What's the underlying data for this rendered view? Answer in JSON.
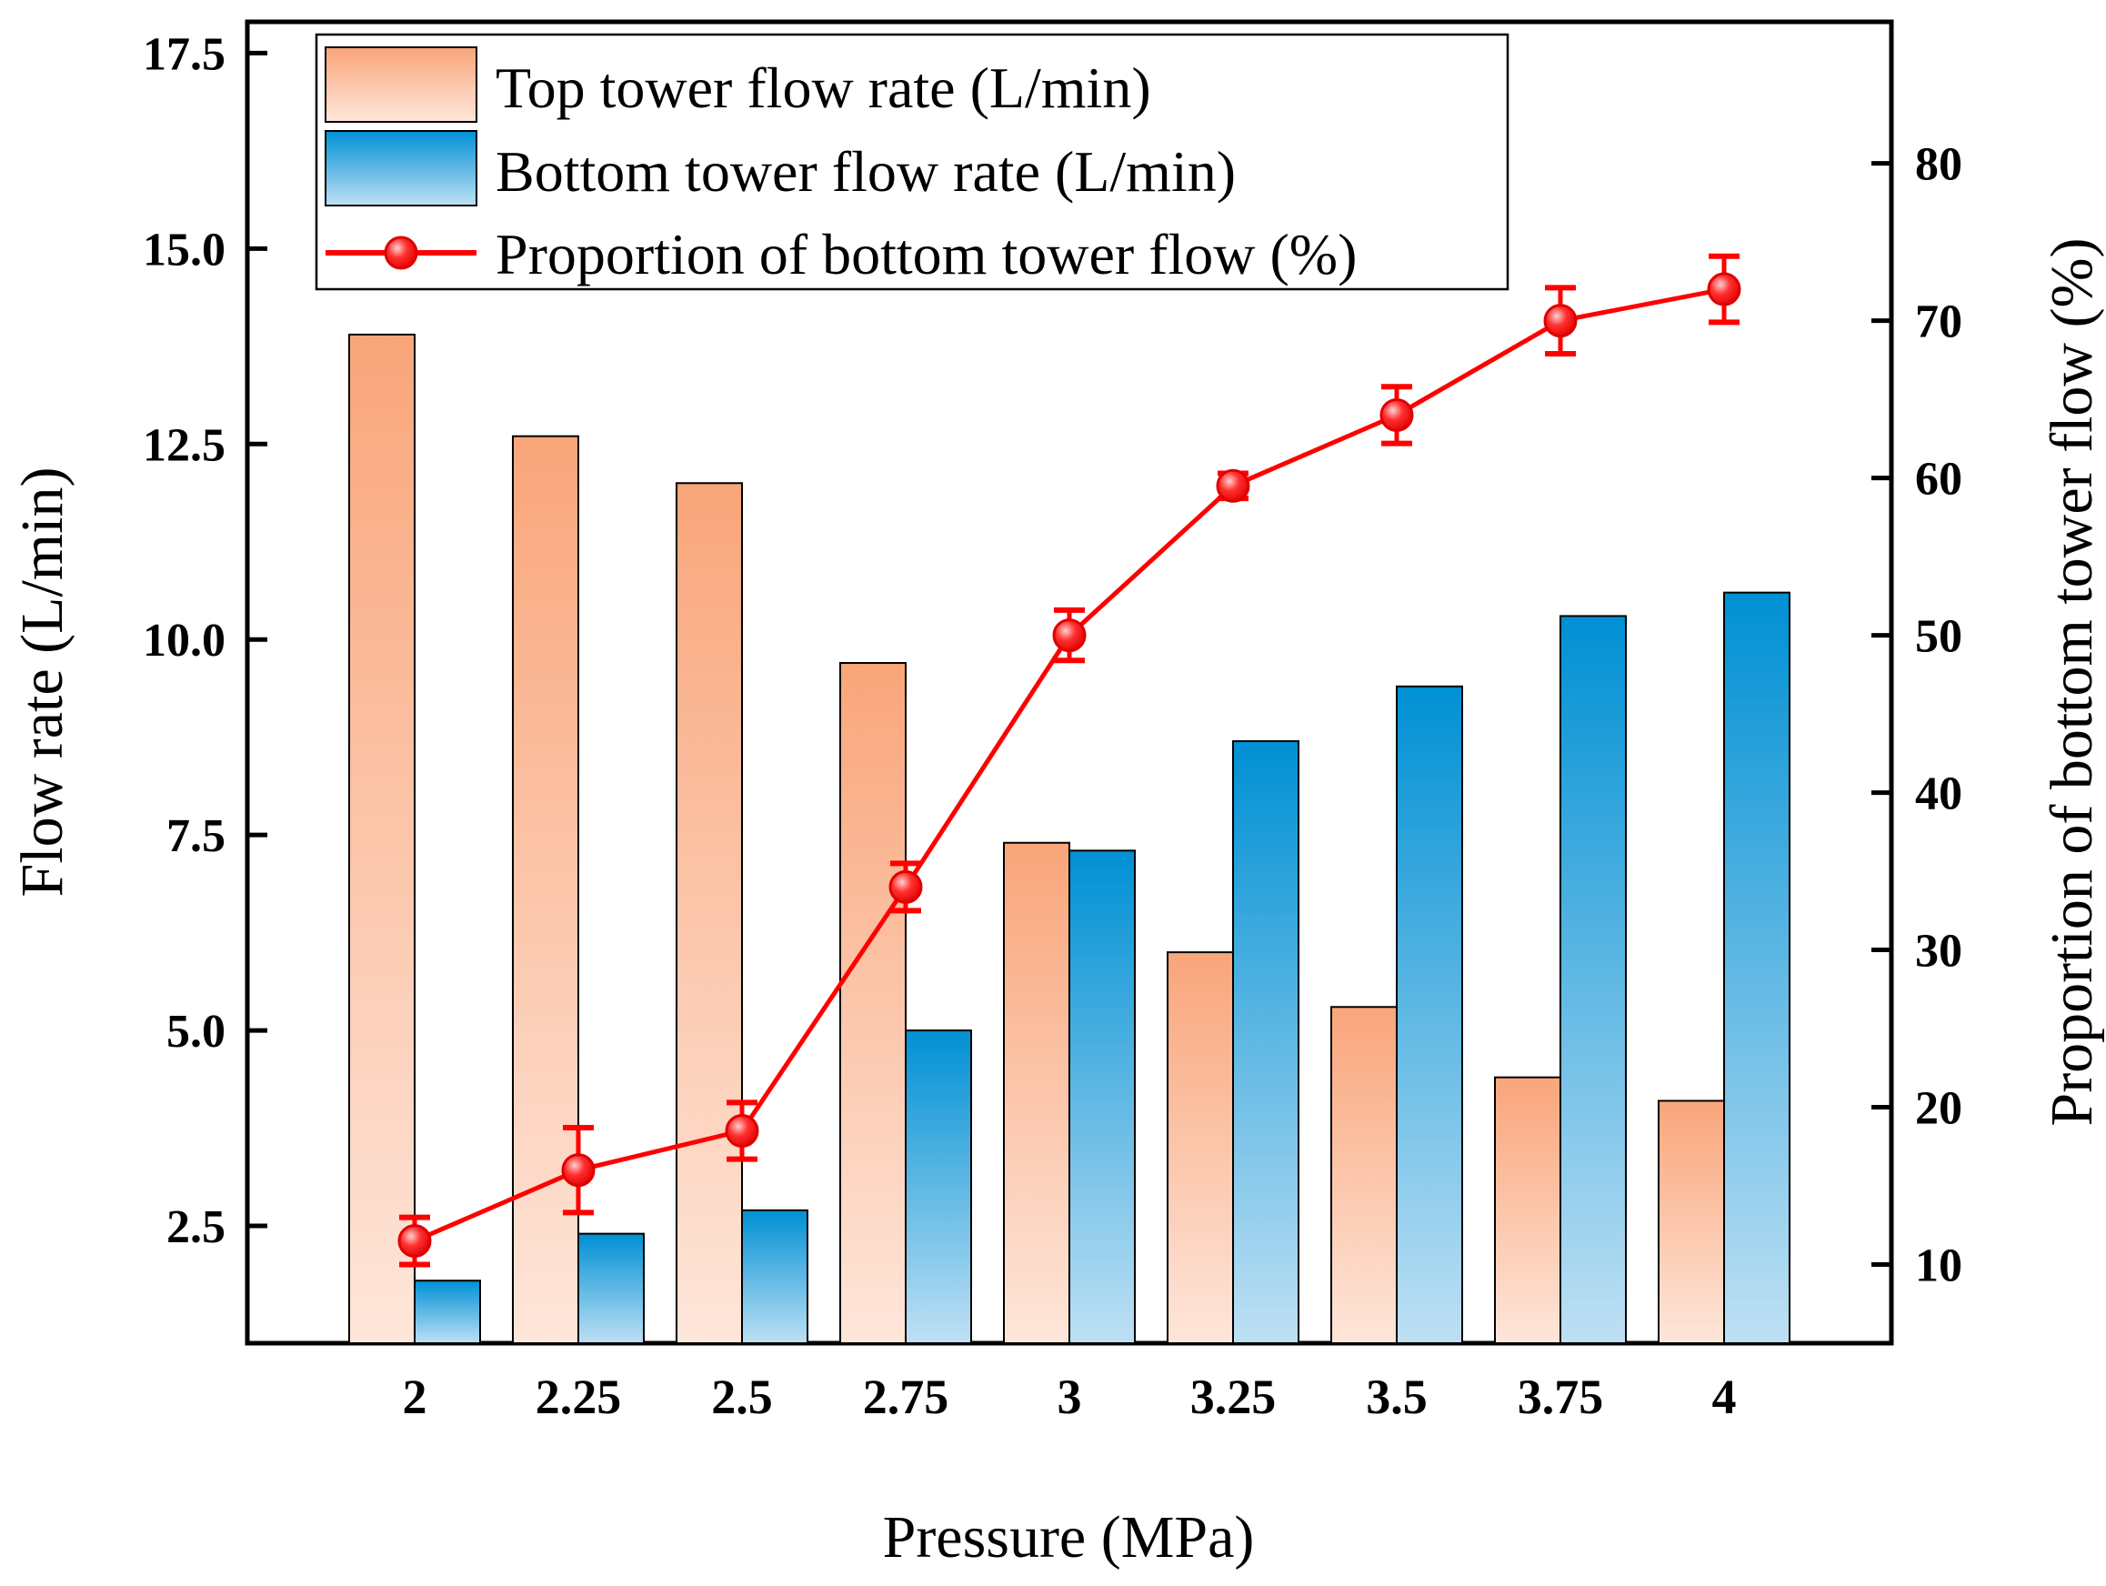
{
  "chart_data": {
    "type": "bar",
    "title": "",
    "categories": [
      "2",
      "2.25",
      "2.5",
      "2.75",
      "3",
      "3.25",
      "3.5",
      "3.75",
      "4"
    ],
    "xlabel": "Pressure (MPa)",
    "ylabel": "Flow rate (L/min)",
    "y2label": "Proportion of bottom tower flow (%)",
    "ylim": [
      1.0,
      17.9
    ],
    "y2lim": [
      5.0,
      89.0
    ],
    "y_ticks": [
      "2.5",
      "5.0",
      "7.5",
      "10.0",
      "12.5",
      "15.0",
      "17.5"
    ],
    "y2_ticks": [
      "10",
      "20",
      "30",
      "40",
      "50",
      "60",
      "70",
      "80"
    ],
    "legend_position": "top-left",
    "series": [
      {
        "name": "Top tower flow rate (L/min)",
        "kind": "bar",
        "axis": "left",
        "color_top": "#F9A57A",
        "color_bottom": "#FEE6DA",
        "values": [
          13.9,
          12.6,
          12.0,
          9.7,
          7.4,
          6.0,
          5.3,
          4.4,
          4.1
        ]
      },
      {
        "name": "Bottom tower flow rate (L/min)",
        "kind": "bar",
        "axis": "right-of-pair",
        "color_top": "#0090D4",
        "color_bottom": "#BEE0F4",
        "values": [
          1.8,
          2.4,
          2.7,
          5.0,
          7.3,
          8.7,
          9.4,
          10.3,
          10.6
        ]
      },
      {
        "name": "Proportion of bottom tower flow (%)",
        "kind": "line",
        "axis": "right",
        "color": "#FF0000",
        "values": [
          11.5,
          16.0,
          18.5,
          34.0,
          50.0,
          59.5,
          64.0,
          70.0,
          72.0
        ],
        "errors": [
          1.5,
          2.7,
          1.8,
          1.5,
          1.6,
          0.8,
          1.8,
          2.1,
          2.1
        ]
      }
    ]
  }
}
